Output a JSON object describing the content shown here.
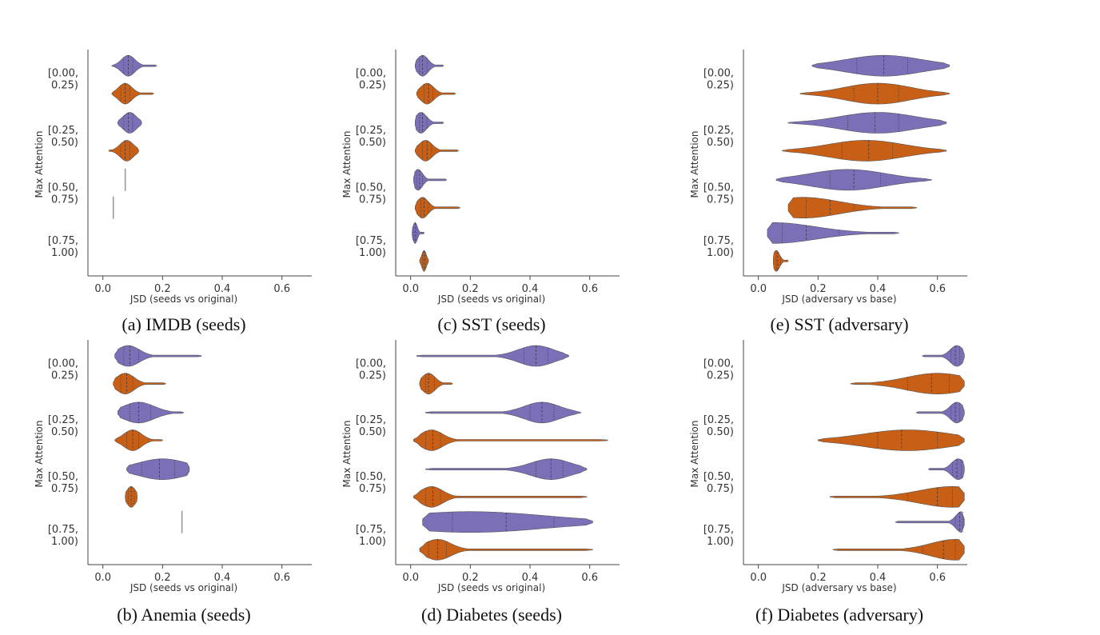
{
  "figure": {
    "y_axis_label": "Max Attention",
    "categories": [
      "[0.00,\n0.25)",
      "[0.25,\n0.50)",
      "[0.50,\n0.75)",
      "[0.75,\n1.00)"
    ],
    "x_ticks": [
      0.0,
      0.2,
      0.4,
      0.6
    ],
    "colors": {
      "seeds_or_adversary": "#7b6fb8",
      "original_or_base": "#c75f17"
    }
  },
  "chart_data": [
    {
      "type": "violin",
      "caption": "(a) IMDB (seeds)",
      "xlabel": "JSD (seeds vs original)",
      "ylabel": "Max Attention",
      "xlim": [
        -0.05,
        0.7
      ],
      "categories": [
        "[0.00, 0.25)",
        "[0.25, 0.50)",
        "[0.50, 0.75)",
        "[0.75, 1.00)"
      ],
      "series": [
        {
          "color": "#7b6fb8",
          "distributions": [
            {
              "min": 0.03,
              "max": 0.18,
              "quartiles": [
                0.07,
                0.085,
                0.1
              ],
              "peak": 0.085
            },
            {
              "min": 0.05,
              "max": 0.13,
              "quartiles": [
                0.07,
                0.085,
                0.1
              ],
              "peak": 0.09
            },
            {
              "min": 0.075,
              "max": 0.075,
              "quartiles": [
                0.075,
                0.075,
                0.075
              ],
              "peak": 0.075
            },
            null
          ]
        },
        {
          "color": "#c75f17",
          "distributions": [
            {
              "min": 0.03,
              "max": 0.17,
              "quartiles": [
                0.06,
                0.075,
                0.09
              ],
              "peak": 0.075
            },
            {
              "min": 0.02,
              "max": 0.12,
              "quartiles": [
                0.06,
                0.075,
                0.09
              ],
              "peak": 0.08
            },
            {
              "min": 0.035,
              "max": 0.035,
              "quartiles": [
                0.035,
                0.035,
                0.035
              ],
              "peak": 0.035
            },
            null
          ]
        }
      ]
    },
    {
      "type": "violin",
      "caption": "(c) SST (seeds)",
      "xlabel": "JSD (seeds vs original)",
      "ylabel": "Max Attention",
      "xlim": [
        -0.05,
        0.7
      ],
      "categories": [
        "[0.00, 0.25)",
        "[0.25, 0.50)",
        "[0.50, 0.75)",
        "[0.75, 1.00)"
      ],
      "series": [
        {
          "color": "#7b6fb8",
          "distributions": [
            {
              "min": 0.015,
              "max": 0.11,
              "quartiles": [
                0.03,
                0.04,
                0.055
              ],
              "peak": 0.04
            },
            {
              "min": 0.015,
              "max": 0.11,
              "quartiles": [
                0.03,
                0.04,
                0.055
              ],
              "peak": 0.035
            },
            {
              "min": 0.01,
              "max": 0.12,
              "quartiles": [
                0.02,
                0.03,
                0.04
              ],
              "peak": 0.025
            },
            {
              "min": 0.005,
              "max": 0.045,
              "quartiles": [
                0.01,
                0.015,
                0.02
              ],
              "peak": 0.015
            }
          ]
        },
        {
          "color": "#c75f17",
          "distributions": [
            {
              "min": 0.02,
              "max": 0.15,
              "quartiles": [
                0.045,
                0.06,
                0.075
              ],
              "peak": 0.055
            },
            {
              "min": 0.015,
              "max": 0.16,
              "quartiles": [
                0.04,
                0.055,
                0.07
              ],
              "peak": 0.05
            },
            {
              "min": 0.015,
              "max": 0.165,
              "quartiles": [
                0.035,
                0.045,
                0.06
              ],
              "peak": 0.04
            },
            {
              "min": 0.03,
              "max": 0.06,
              "quartiles": [
                0.04,
                0.045,
                0.05
              ],
              "peak": 0.045
            }
          ]
        }
      ]
    },
    {
      "type": "violin",
      "caption": "(e) SST (adversary)",
      "xlabel": "JSD (adversary vs base)",
      "ylabel": "Max Attention",
      "xlim": [
        -0.05,
        0.7
      ],
      "categories": [
        "[0.00, 0.25)",
        "[0.25, 0.50)",
        "[0.50, 0.75)",
        "[0.75, 1.00)"
      ],
      "series": [
        {
          "color": "#7b6fb8",
          "distributions": [
            {
              "min": 0.18,
              "max": 0.64,
              "quartiles": [
                0.33,
                0.42,
                0.5
              ],
              "peak": 0.42
            },
            {
              "min": 0.1,
              "max": 0.63,
              "quartiles": [
                0.3,
                0.39,
                0.47
              ],
              "peak": 0.4
            },
            {
              "min": 0.06,
              "max": 0.58,
              "quartiles": [
                0.24,
                0.32,
                0.41
              ],
              "peak": 0.3
            },
            {
              "min": 0.03,
              "max": 0.47,
              "quartiles": [
                0.08,
                0.16,
                0.27
              ],
              "peak": 0.05
            }
          ]
        },
        {
          "color": "#c75f17",
          "distributions": [
            {
              "min": 0.14,
              "max": 0.64,
              "quartiles": [
                0.32,
                0.4,
                0.47
              ],
              "peak": 0.4
            },
            {
              "min": 0.08,
              "max": 0.63,
              "quartiles": [
                0.28,
                0.37,
                0.45
              ],
              "peak": 0.36
            },
            {
              "min": 0.1,
              "max": 0.53,
              "quartiles": [
                0.16,
                0.24,
                0.32
              ],
              "peak": 0.15
            },
            {
              "min": 0.05,
              "max": 0.1,
              "quartiles": [
                0.06,
                0.065,
                0.075
              ],
              "peak": 0.06
            }
          ]
        }
      ]
    },
    {
      "type": "violin",
      "caption": "(b) Anemia (seeds)",
      "xlabel": "JSD (seeds vs original)",
      "ylabel": "Max Attention",
      "xlim": [
        -0.05,
        0.7
      ],
      "categories": [
        "[0.00, 0.25)",
        "[0.25, 0.50)",
        "[0.50, 0.75)",
        "[0.75, 1.00)"
      ],
      "series": [
        {
          "color": "#7b6fb8",
          "distributions": [
            {
              "min": 0.04,
              "max": 0.33,
              "quartiles": [
                0.07,
                0.09,
                0.12
              ],
              "peak": 0.085
            },
            {
              "min": 0.05,
              "max": 0.27,
              "quartiles": [
                0.09,
                0.12,
                0.16
              ],
              "peak": 0.12
            },
            {
              "min": 0.08,
              "max": 0.29,
              "quartiles": [
                0.13,
                0.19,
                0.24
              ],
              "peak": 0.2
            },
            {
              "min": 0.265,
              "max": 0.265,
              "quartiles": [
                0.265,
                0.265,
                0.265
              ],
              "peak": 0.265
            }
          ]
        },
        {
          "color": "#c75f17",
          "distributions": [
            {
              "min": 0.035,
              "max": 0.21,
              "quartiles": [
                0.06,
                0.08,
                0.1
              ],
              "peak": 0.075
            },
            {
              "min": 0.04,
              "max": 0.2,
              "quartiles": [
                0.08,
                0.1,
                0.12
              ],
              "peak": 0.1
            },
            {
              "min": 0.075,
              "max": 0.115,
              "quartiles": [
                0.085,
                0.095,
                0.105
              ],
              "peak": 0.095
            },
            null
          ]
        }
      ]
    },
    {
      "type": "violin",
      "caption": "(d) Diabetes (seeds)",
      "xlabel": "JSD (seeds vs original)",
      "ylabel": "Max Attention",
      "xlim": [
        -0.05,
        0.7
      ],
      "categories": [
        "[0.00, 0.25)",
        "[0.25, 0.50)",
        "[0.50, 0.75)",
        "[0.75, 1.00)"
      ],
      "series": [
        {
          "color": "#7b6fb8",
          "distributions": [
            {
              "min": 0.02,
              "max": 0.53,
              "quartiles": [
                0.38,
                0.42,
                0.46
              ],
              "peak": 0.42
            },
            {
              "min": 0.05,
              "max": 0.57,
              "quartiles": [
                0.4,
                0.44,
                0.48
              ],
              "peak": 0.44
            },
            {
              "min": 0.05,
              "max": 0.59,
              "quartiles": [
                0.42,
                0.47,
                0.51
              ],
              "peak": 0.47
            },
            {
              "min": 0.04,
              "max": 0.61,
              "quartiles": [
                0.14,
                0.32,
                0.48
              ],
              "peak": 0.2
            }
          ]
        },
        {
          "color": "#c75f17",
          "distributions": [
            {
              "min": 0.03,
              "max": 0.14,
              "quartiles": [
                0.05,
                0.06,
                0.08
              ],
              "peak": 0.06
            },
            {
              "min": 0.01,
              "max": 0.66,
              "quartiles": [
                0.05,
                0.075,
                0.1
              ],
              "peak": 0.07
            },
            {
              "min": 0.01,
              "max": 0.59,
              "quartiles": [
                0.05,
                0.075,
                0.1
              ],
              "peak": 0.07
            },
            {
              "min": 0.03,
              "max": 0.61,
              "quartiles": [
                0.06,
                0.09,
                0.12
              ],
              "peak": 0.09
            }
          ]
        }
      ]
    },
    {
      "type": "violin",
      "caption": "(f) Diabetes (adversary)",
      "xlabel": "JSD (adversary vs base)",
      "ylabel": "Max Attention",
      "xlim": [
        -0.05,
        0.7
      ],
      "categories": [
        "[0.00, 0.25)",
        "[0.25, 0.50)",
        "[0.50, 0.75)",
        "[0.75, 1.00)"
      ],
      "series": [
        {
          "color": "#7b6fb8",
          "distributions": [
            {
              "min": 0.55,
              "max": 0.69,
              "quartiles": [
                0.645,
                0.66,
                0.675
              ],
              "peak": 0.665
            },
            {
              "min": 0.53,
              "max": 0.69,
              "quartiles": [
                0.645,
                0.66,
                0.675
              ],
              "peak": 0.665
            },
            {
              "min": 0.57,
              "max": 0.69,
              "quartiles": [
                0.65,
                0.665,
                0.68
              ],
              "peak": 0.67
            },
            {
              "min": 0.46,
              "max": 0.69,
              "quartiles": [
                0.66,
                0.675,
                0.685
              ],
              "peak": 0.68
            }
          ]
        },
        {
          "color": "#c75f17",
          "distributions": [
            {
              "min": 0.31,
              "max": 0.69,
              "quartiles": [
                0.5,
                0.58,
                0.64
              ],
              "peak": 0.6
            },
            {
              "min": 0.2,
              "max": 0.69,
              "quartiles": [
                0.4,
                0.48,
                0.6
              ],
              "peak": 0.5
            },
            {
              "min": 0.24,
              "max": 0.69,
              "quartiles": [
                0.5,
                0.6,
                0.65
              ],
              "peak": 0.65
            },
            {
              "min": 0.25,
              "max": 0.69,
              "quartiles": [
                0.55,
                0.62,
                0.66
              ],
              "peak": 0.66
            }
          ]
        }
      ]
    }
  ]
}
